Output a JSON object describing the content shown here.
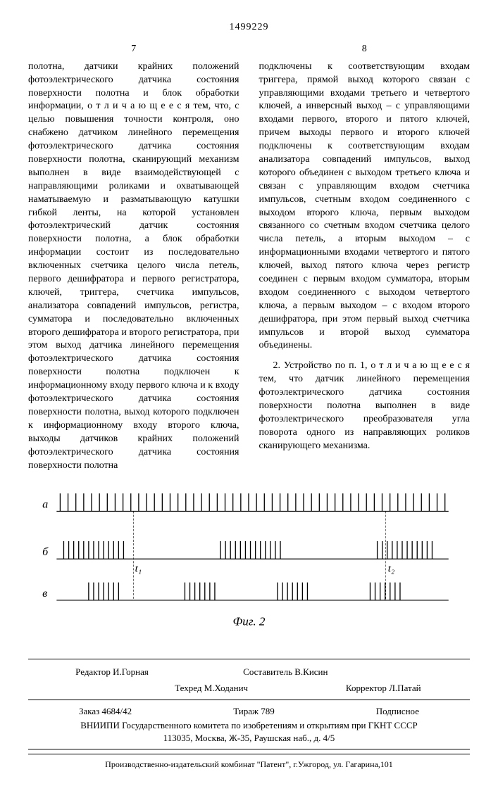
{
  "doc_number": "1499229",
  "col_left_num": "7",
  "col_right_num": "8",
  "col_left_text": "полотна, датчики крайних положений фотоэлектрического датчика состояния поверхности полотна и блок обработки информации, о т л и ч а ю щ е е с я тем, что, с целью повышения точности контроля, оно снабжено датчиком линейного перемещения фотоэлектрического датчика состояния поверхности полотна, сканирующий механизм выполнен в виде взаимодействующей с направляющими роликами и охватывающей наматываемую и разматывающую катушки гибкой ленты, на которой установлен фотоэлектрический датчик состояния поверхности полотна, а блок обработки информации состоит из последовательно включенных счетчика целого числа петель, первого дешифратора и первого регистратора, ключей, триггера, счетчика импульсов, анализатора совпадений импульсов, регистра, сумматора и последовательно включенных второго дешифратора и второго регистратора, при этом выход датчика линейного перемещения фотоэлектрического датчика состояния поверхности полотна подключен к информационному входу первого ключа и к входу фотоэлектрического датчика состояния поверхности полотна, выход которого подключен к информационному входу второго ключа, выходы датчиков крайних положений фотоэлектрического датчика состояния поверхности полотна",
  "col_right_text_p1": "подключены к соответствующим входам триггера, прямой выход которого связан с управляющими входами третьего и четвертого ключей, а инверсный выход – с управляющими входами первого, второго и пятого ключей, причем выходы первого и второго ключей подключены к соответствующим входам анализатора совпадений импульсов, выход которого объединен с выходом третьего ключа и связан с управляющим входом счетчика импульсов, счетным входом соединенного с выходом второго ключа, первым выходом связанного со счетным входом счетчика целого числа петель, а вторым выходом – с информационными входами четвертого и пятого ключей, выход пятого ключа через регистр соединен с первым входом сумматора, вторым входом соединенного с выходом четвертого ключа, а первым выходом – с входом второго дешифратора, при этом первый выход счетчика импульсов и второй выход сумматора объединены.",
  "col_right_text_p2": "2. Устройство по п. 1, о т л и ч а ю щ е е с я тем, что датчик линейного перемещения фотоэлектрического датчика состояния поверхности полотна выполнен в виде фотоэлектрического преобразователя угла поворота одного из направляющих роликов сканирующего механизма.",
  "figure": {
    "label_a": "а",
    "label_b": "б",
    "label_c": "в",
    "t1": "t₁",
    "t2": "t₂",
    "caption": "Фиг. 2",
    "stroke": "#000000",
    "trace_a_count": 50,
    "trace_b_groups": [
      {
        "start": 0,
        "count": 13,
        "spacing": 7
      },
      {
        "start": 220,
        "count": 13,
        "spacing": 7
      },
      {
        "start": 440,
        "count": 12,
        "spacing": 7
      }
    ],
    "trace_c_groups": [
      {
        "start": 15,
        "count": 7,
        "spacing": 7
      },
      {
        "start": 150,
        "count": 7,
        "spacing": 7
      },
      {
        "start": 280,
        "count": 7,
        "spacing": 7
      },
      {
        "start": 410,
        "count": 7,
        "spacing": 7
      }
    ]
  },
  "footer": {
    "editor": "Редактор И.Горная",
    "compiler": "Составитель В.Кисин",
    "techred": "Техред М.Ходанич",
    "corrector": "Корректор Л.Патай",
    "order": "Заказ 4684/42",
    "tirage": "Тираж 789",
    "subscription": "Подписное",
    "org": "ВНИИПИ Государственного комитета по изобретениям и открытиям при ГКНТ СССР",
    "address": "113035, Москва, Ж-35, Раушская наб., д. 4/5",
    "bottom": "Производственно-издательский комбинат \"Патент\", г.Ужгород, ул. Гагарина,101"
  }
}
